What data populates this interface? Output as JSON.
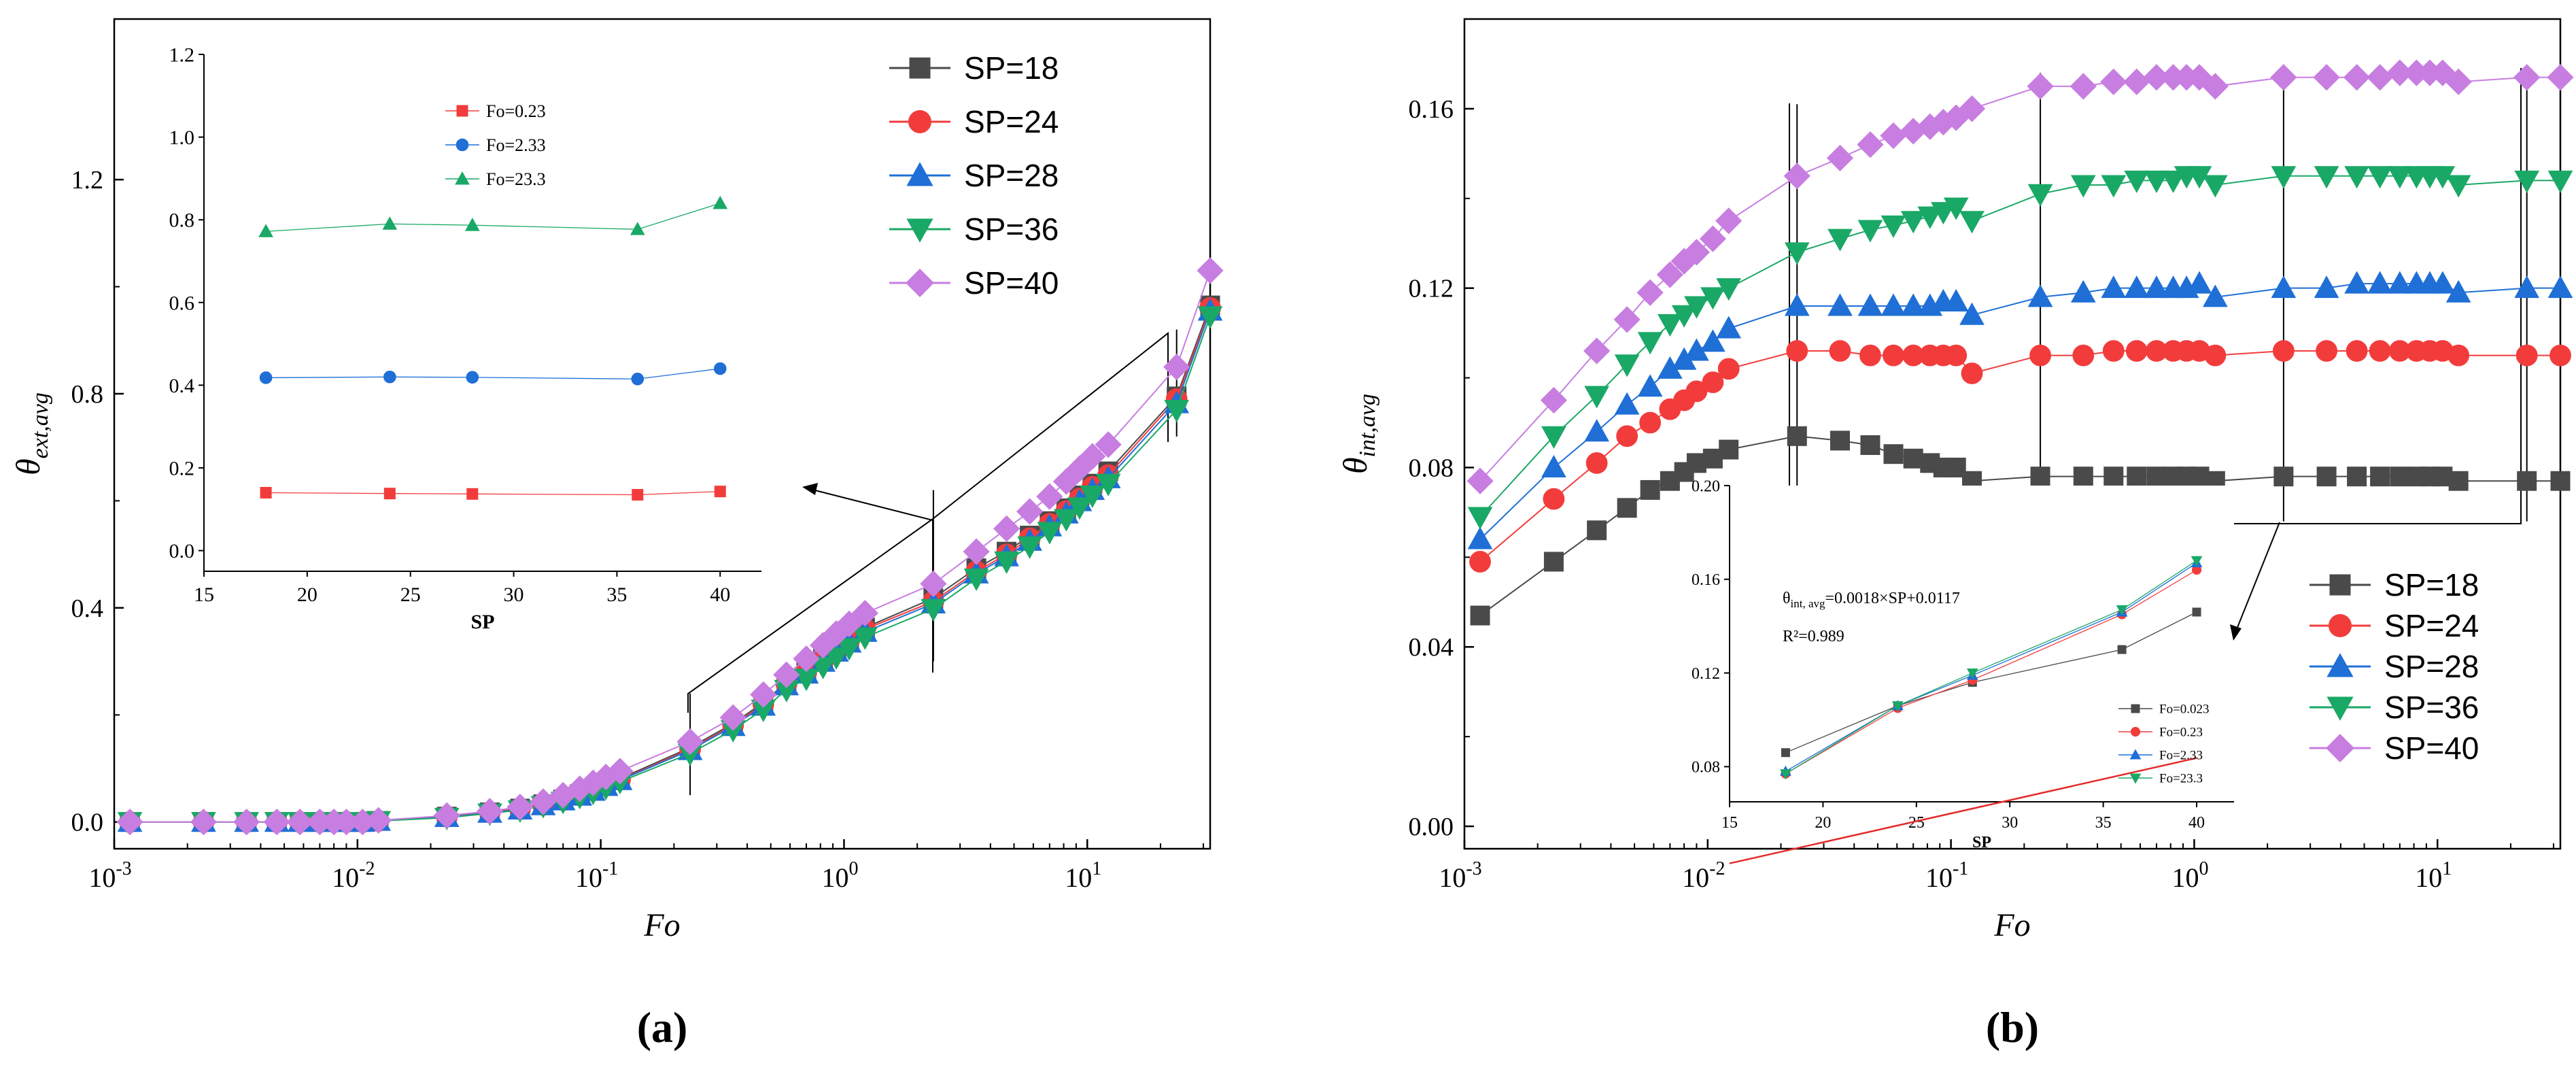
{
  "colors": {
    "SP=18": "#4a4a4a",
    "SP=24": "#f23c3c",
    "SP=28": "#1f6fd6",
    "SP=36": "#1aa866",
    "SP=40": "#c77ee0",
    "Fo=0.023": "#4a4a4a",
    "Fo=0.23": "#f23c3c",
    "Fo=2.33": "#1f6fd6",
    "Fo=23.3": "#1aa866",
    "fit": "#e52b2b",
    "axis": "#000000"
  },
  "chart_data": [
    {
      "id": "a",
      "panel_label": "(a)",
      "type": "line",
      "xscale": "log",
      "xlim": [
        0.001,
        32
      ],
      "ylim": [
        -0.05,
        1.5
      ],
      "xlabel": "Fo",
      "ylabel": "θext,avg",
      "xticks": [
        0.001,
        0.01,
        0.1,
        1,
        10
      ],
      "xtick_labels": [
        [
          "10",
          "-3"
        ],
        [
          "10",
          "-2"
        ],
        [
          "10",
          "-1"
        ],
        [
          "10",
          "0"
        ],
        [
          "10",
          "1"
        ]
      ],
      "yticks": [
        0.0,
        0.4,
        0.8,
        1.2
      ],
      "ytick_labels": [
        "0.0",
        "0.4",
        "0.8",
        "1.2"
      ],
      "legend_position": "top-right",
      "x": [
        0.00116,
        0.00233,
        0.0035,
        0.00466,
        0.0058,
        0.007,
        0.008,
        0.009,
        0.0105,
        0.0122,
        0.0233,
        0.035,
        0.0466,
        0.058,
        0.07,
        0.082,
        0.093,
        0.105,
        0.12,
        0.233,
        0.35,
        0.466,
        0.58,
        0.7,
        0.82,
        0.93,
        1.05,
        1.22,
        2.33,
        3.5,
        4.66,
        5.8,
        7.0,
        8.2,
        9.3,
        10.5,
        12.2,
        23.3,
        32
      ],
      "series": [
        {
          "name": "SP=18",
          "marker": "square",
          "values": [
            0,
            0,
            0,
            0,
            0,
            0,
            0,
            0,
            0,
            0.002,
            0.01,
            0.018,
            0.025,
            0.033,
            0.042,
            0.052,
            0.061,
            0.07,
            0.081,
            0.139,
            0.184,
            0.223,
            0.261,
            0.283,
            0.305,
            0.325,
            0.342,
            0.363,
            0.418,
            0.474,
            0.505,
            0.535,
            0.562,
            0.586,
            0.61,
            0.632,
            0.655,
            0.795,
            0.965
          ]
        },
        {
          "name": "SP=24",
          "marker": "circle",
          "values": [
            0,
            0,
            0,
            0,
            0,
            0,
            0,
            0,
            0,
            0.002,
            0.01,
            0.018,
            0.024,
            0.032,
            0.041,
            0.05,
            0.059,
            0.068,
            0.079,
            0.136,
            0.181,
            0.22,
            0.258,
            0.28,
            0.302,
            0.322,
            0.339,
            0.36,
            0.412,
            0.468,
            0.5,
            0.53,
            0.557,
            0.581,
            0.604,
            0.626,
            0.648,
            0.79,
            0.96
          ]
        },
        {
          "name": "SP=28",
          "marker": "triangle-up",
          "values": [
            0,
            0,
            0,
            0,
            0,
            0,
            0,
            0,
            0,
            0.002,
            0.009,
            0.017,
            0.023,
            0.031,
            0.04,
            0.049,
            0.058,
            0.067,
            0.078,
            0.134,
            0.179,
            0.217,
            0.255,
            0.277,
            0.299,
            0.318,
            0.335,
            0.355,
            0.408,
            0.464,
            0.496,
            0.525,
            0.552,
            0.576,
            0.599,
            0.62,
            0.642,
            0.782,
            0.955
          ]
        },
        {
          "name": "SP=36",
          "marker": "triangle-down",
          "values": [
            0,
            0,
            0,
            0,
            0,
            0,
            0,
            0,
            0,
            0.002,
            0.008,
            0.016,
            0.022,
            0.03,
            0.038,
            0.047,
            0.055,
            0.064,
            0.075,
            0.128,
            0.172,
            0.21,
            0.247,
            0.268,
            0.29,
            0.308,
            0.325,
            0.345,
            0.398,
            0.455,
            0.487,
            0.515,
            0.542,
            0.566,
            0.588,
            0.61,
            0.632,
            0.77,
            0.945
          ]
        },
        {
          "name": "SP=40",
          "marker": "diamond",
          "values": [
            0,
            0,
            0,
            0,
            0,
            0,
            0,
            0,
            0,
            0.003,
            0.012,
            0.02,
            0.028,
            0.038,
            0.05,
            0.062,
            0.073,
            0.084,
            0.095,
            0.15,
            0.195,
            0.238,
            0.275,
            0.305,
            0.33,
            0.352,
            0.37,
            0.39,
            0.445,
            0.505,
            0.548,
            0.58,
            0.608,
            0.636,
            0.66,
            0.683,
            0.705,
            0.85,
            1.03
          ]
        }
      ],
      "zoom_lines": [
        {
          "x": 0.233,
          "y_range": [
            0.05,
            0.24
          ]
        },
        {
          "x": 2.33,
          "y_range": [
            0.3,
            0.62
          ]
        },
        {
          "x": 23.3,
          "y_range": [
            0.72,
            0.92
          ]
        }
      ],
      "inset": {
        "type": "line",
        "xlim": [
          15,
          42
        ],
        "ylim": [
          -0.05,
          1.2
        ],
        "xlabel": "SP",
        "ylabel": "",
        "xticks": [
          15,
          20,
          25,
          30,
          35,
          40
        ],
        "yticks": [
          0.0,
          0.2,
          0.4,
          0.6,
          0.8,
          1.0,
          1.2
        ],
        "ytick_labels": [
          "0.0",
          "0.2",
          "0.4",
          "0.6",
          "0.8",
          "1.0",
          "1.2"
        ],
        "legend_position": "top-left",
        "x": [
          18,
          24,
          28,
          36,
          40
        ],
        "series": [
          {
            "name": "Fo=0.23",
            "marker": "square",
            "values": [
              0.14,
              0.138,
              0.137,
              0.135,
              0.143
            ]
          },
          {
            "name": "Fo=2.33",
            "marker": "circle",
            "values": [
              0.418,
              0.42,
              0.419,
              0.415,
              0.44
            ]
          },
          {
            "name": "Fo=23.3",
            "marker": "triangle-up",
            "values": [
              0.772,
              0.79,
              0.787,
              0.777,
              0.84
            ]
          }
        ]
      }
    },
    {
      "id": "b",
      "panel_label": "(b)",
      "type": "line",
      "xscale": "log",
      "xlim": [
        0.001,
        32
      ],
      "ylim": [
        -0.005,
        0.18
      ],
      "xlabel": "Fo",
      "ylabel": "θint,avg",
      "xticks": [
        0.001,
        0.01,
        0.1,
        1,
        10
      ],
      "xtick_labels": [
        [
          "10",
          "-3"
        ],
        [
          "10",
          "-2"
        ],
        [
          "10",
          "-1"
        ],
        [
          "10",
          "0"
        ],
        [
          "10",
          "1"
        ]
      ],
      "yticks": [
        0.0,
        0.04,
        0.08,
        0.12,
        0.16
      ],
      "ytick_labels": [
        "0.00",
        "0.04",
        "0.08",
        "0.12",
        "0.16"
      ],
      "legend_position": "bottom-right",
      "x": [
        0.00116,
        0.00233,
        0.0035,
        0.00466,
        0.0058,
        0.007,
        0.008,
        0.009,
        0.0105,
        0.0122,
        0.0233,
        0.035,
        0.0466,
        0.058,
        0.07,
        0.082,
        0.093,
        0.105,
        0.122,
        0.233,
        0.35,
        0.466,
        0.58,
        0.7,
        0.82,
        0.93,
        1.05,
        1.22,
        2.33,
        3.5,
        4.66,
        5.8,
        7.0,
        8.2,
        9.3,
        10.5,
        12.2,
        23.3,
        32
      ],
      "series": [
        {
          "name": "SP=18",
          "marker": "square",
          "values": [
            0.047,
            0.059,
            0.066,
            0.071,
            0.075,
            0.077,
            0.079,
            0.081,
            0.082,
            0.084,
            0.087,
            0.086,
            0.085,
            0.083,
            0.082,
            0.081,
            0.08,
            0.08,
            0.077,
            0.078,
            0.078,
            0.078,
            0.078,
            0.078,
            0.078,
            0.078,
            0.078,
            0.077,
            0.078,
            0.078,
            0.078,
            0.078,
            0.078,
            0.078,
            0.078,
            0.078,
            0.077,
            0.077,
            0.077
          ]
        },
        {
          "name": "SP=24",
          "marker": "circle",
          "values": [
            0.059,
            0.073,
            0.081,
            0.087,
            0.09,
            0.093,
            0.095,
            0.097,
            0.099,
            0.102,
            0.106,
            0.106,
            0.105,
            0.105,
            0.105,
            0.105,
            0.105,
            0.105,
            0.101,
            0.105,
            0.105,
            0.106,
            0.106,
            0.106,
            0.106,
            0.106,
            0.106,
            0.105,
            0.106,
            0.106,
            0.106,
            0.106,
            0.106,
            0.106,
            0.106,
            0.106,
            0.105,
            0.105,
            0.105
          ]
        },
        {
          "name": "SP=28",
          "marker": "triangle-up",
          "values": [
            0.064,
            0.08,
            0.088,
            0.094,
            0.098,
            0.102,
            0.104,
            0.106,
            0.108,
            0.111,
            0.116,
            0.116,
            0.116,
            0.116,
            0.116,
            0.116,
            0.117,
            0.117,
            0.114,
            0.118,
            0.119,
            0.12,
            0.12,
            0.12,
            0.12,
            0.12,
            0.121,
            0.118,
            0.12,
            0.12,
            0.121,
            0.121,
            0.121,
            0.121,
            0.121,
            0.121,
            0.119,
            0.12,
            0.12
          ]
        },
        {
          "name": "SP=36",
          "marker": "triangle-down",
          "values": [
            0.069,
            0.087,
            0.096,
            0.103,
            0.108,
            0.112,
            0.114,
            0.116,
            0.118,
            0.12,
            0.128,
            0.131,
            0.133,
            0.134,
            0.135,
            0.136,
            0.137,
            0.138,
            0.135,
            0.141,
            0.143,
            0.143,
            0.144,
            0.144,
            0.144,
            0.145,
            0.145,
            0.143,
            0.145,
            0.145,
            0.145,
            0.145,
            0.145,
            0.145,
            0.145,
            0.145,
            0.143,
            0.144,
            0.144
          ]
        },
        {
          "name": "SP=40",
          "marker": "diamond",
          "values": [
            0.077,
            0.095,
            0.106,
            0.113,
            0.119,
            0.123,
            0.126,
            0.128,
            0.131,
            0.135,
            0.145,
            0.149,
            0.152,
            0.154,
            0.155,
            0.156,
            0.157,
            0.158,
            0.16,
            0.165,
            0.165,
            0.166,
            0.166,
            0.167,
            0.167,
            0.167,
            0.167,
            0.165,
            0.167,
            0.167,
            0.167,
            0.167,
            0.168,
            0.168,
            0.168,
            0.168,
            0.166,
            0.167,
            0.167
          ]
        }
      ],
      "zoom_lines": [
        {
          "x": 0.0233,
          "y_range": [
            0.068,
            0.161
          ]
        },
        {
          "x": 0.233,
          "y_range": [
            0.068,
            0.168
          ]
        },
        {
          "x": 2.33,
          "y_range": [
            0.068,
            0.168
          ]
        },
        {
          "x": 23.3,
          "y_range": [
            0.068,
            0.168
          ]
        }
      ],
      "inset": {
        "type": "line",
        "xlim": [
          15,
          42
        ],
        "ylim": [
          0.065,
          0.2
        ],
        "xlabel": "SP",
        "ylabel": "",
        "xticks": [
          15,
          20,
          25,
          30,
          35,
          40
        ],
        "yticks": [
          0.08,
          0.12,
          0.16,
          0.2
        ],
        "ytick_labels": [
          "0.08",
          "0.12",
          "0.16",
          "0.20"
        ],
        "legend_position": "bottom-right",
        "x": [
          18,
          24,
          28,
          36,
          40
        ],
        "series": [
          {
            "name": "Fo=0.023",
            "marker": "square",
            "values": [
              0.086,
              0.106,
              0.116,
              0.13,
              0.146
            ]
          },
          {
            "name": "Fo=0.23",
            "marker": "circle",
            "values": [
              0.077,
              0.105,
              0.117,
              0.145,
              0.164
            ]
          },
          {
            "name": "Fo=2.33",
            "marker": "triangle-up",
            "values": [
              0.078,
              0.106,
              0.119,
              0.146,
              0.167
            ]
          },
          {
            "name": "Fo=23.3",
            "marker": "triangle-down",
            "values": [
              0.077,
              0.106,
              0.12,
              0.147,
              0.168
            ]
          }
        ],
        "fit": {
          "slope": 0.0018,
          "intercept": 0.0117,
          "x_range": [
            15,
            40
          ]
        },
        "annotation_equation": "θint, avg=0.0018×SP+0.0117",
        "annotation_r2": "R²=0.989"
      }
    }
  ]
}
